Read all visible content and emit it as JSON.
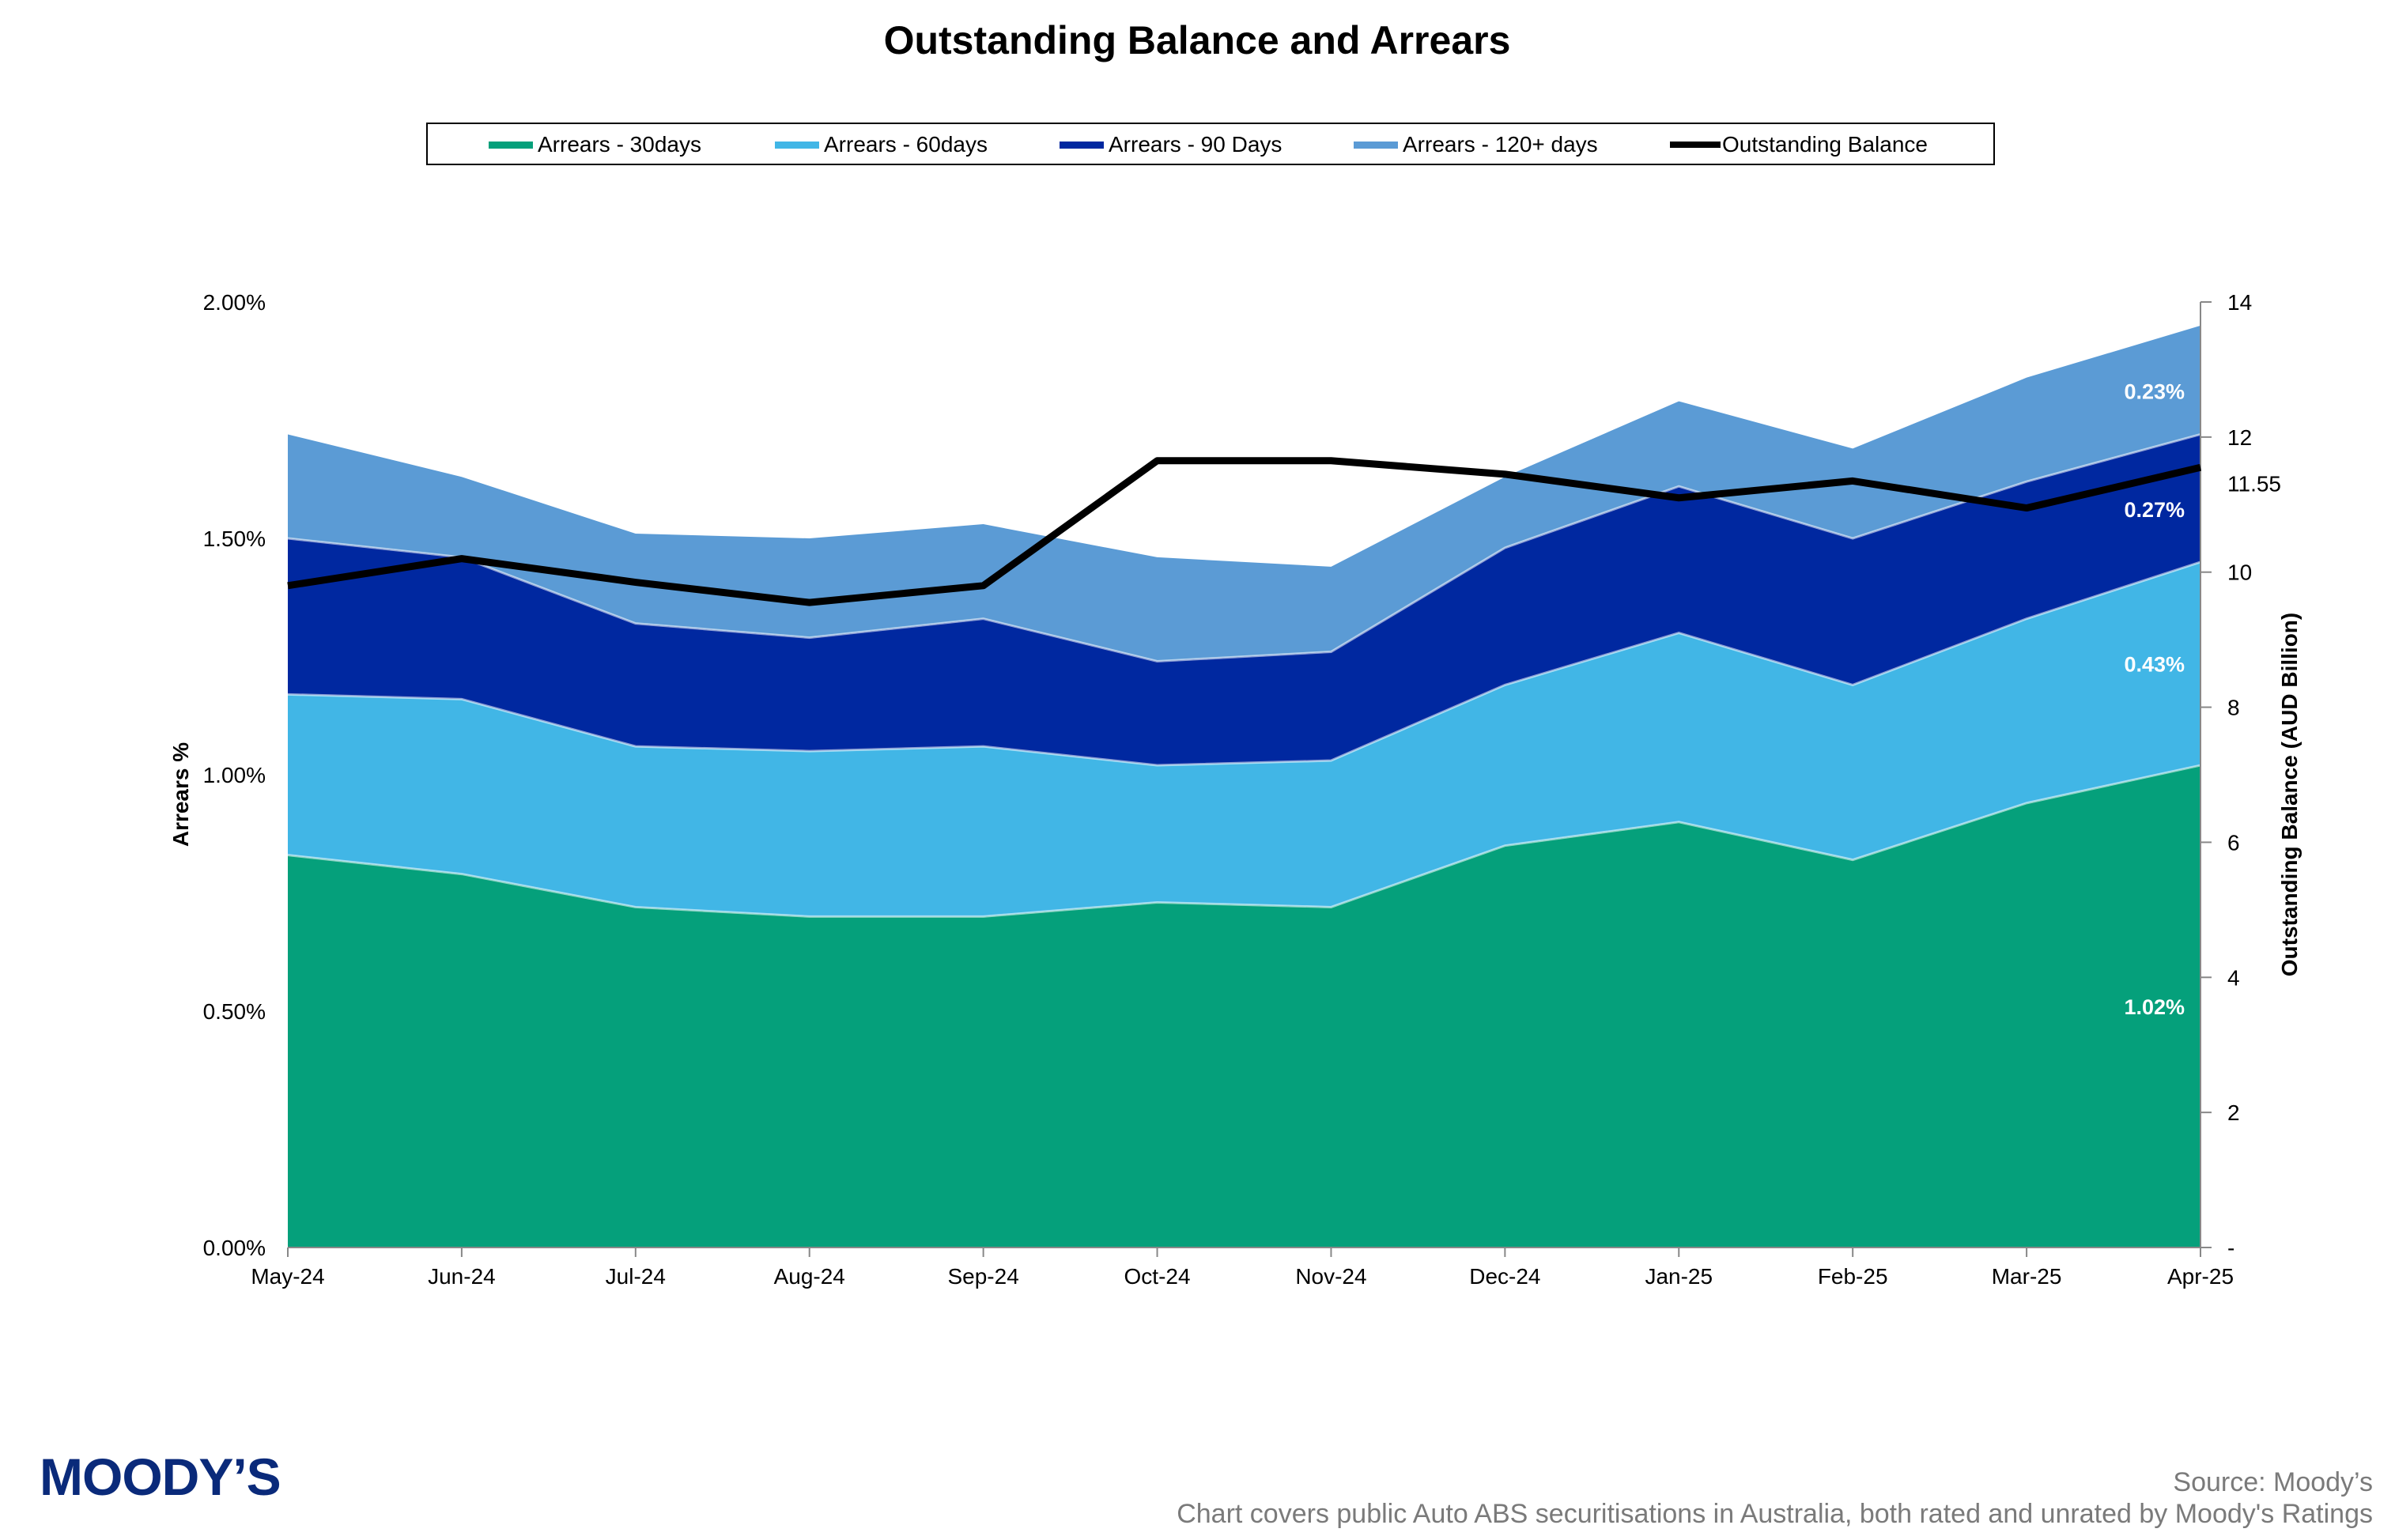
{
  "chart_data": {
    "type": "area",
    "title": "Outstanding Balance and Arrears",
    "categories": [
      "May-24",
      "Jun-24",
      "Jul-24",
      "Aug-24",
      "Sep-24",
      "Oct-24",
      "Nov-24",
      "Dec-24",
      "Jan-25",
      "Feb-25",
      "Mar-25",
      "Apr-25"
    ],
    "stacked": true,
    "ylabel": "Arrears %",
    "y2label": "Outstanding Balance (AUD Billion)",
    "ylim": [
      0,
      2.0
    ],
    "y2lim": [
      0,
      14
    ],
    "yticks": [
      "0.00%",
      "0.50%",
      "1.00%",
      "1.50%",
      "2.00%"
    ],
    "y2ticks": [
      "-",
      "2",
      "4",
      "6",
      "8",
      "10",
      "12",
      "14"
    ],
    "series": [
      {
        "name": "Arrears - 30days",
        "color": "#05a07b",
        "values": [
          0.83,
          0.79,
          0.72,
          0.7,
          0.7,
          0.73,
          0.72,
          0.85,
          0.9,
          0.82,
          0.94,
          1.02
        ]
      },
      {
        "name": "Arrears - 60days",
        "color": "#41b6e6",
        "values": [
          0.34,
          0.37,
          0.34,
          0.35,
          0.36,
          0.29,
          0.31,
          0.34,
          0.4,
          0.37,
          0.39,
          0.43
        ]
      },
      {
        "name": "Arrears - 90 Days",
        "color": "#0028a0",
        "values": [
          0.33,
          0.3,
          0.26,
          0.24,
          0.27,
          0.22,
          0.23,
          0.29,
          0.31,
          0.31,
          0.29,
          0.27
        ]
      },
      {
        "name": "Arrears - 120+ days",
        "color": "#5b9bd5",
        "values": [
          0.22,
          0.17,
          0.19,
          0.21,
          0.2,
          0.22,
          0.18,
          0.15,
          0.18,
          0.19,
          0.22,
          0.23
        ]
      }
    ],
    "line_series": {
      "name": "Outstanding Balance",
      "color": "#000000",
      "axis": "right",
      "values": [
        9.8,
        10.2,
        9.85,
        9.55,
        9.8,
        11.65,
        11.65,
        11.45,
        11.1,
        11.35,
        10.95,
        11.55
      ]
    },
    "data_labels": {
      "s30": "1.02%",
      "s60": "0.43%",
      "s90": "0.27%",
      "s120": "0.23%",
      "balance": "11.55"
    },
    "legend": {
      "placement": "top-center"
    }
  },
  "footer": {
    "logo": "MOODY’S",
    "source": "Source: Moody’s",
    "note": "Chart covers public Auto ABS securitisations in Australia, both rated and unrated by Moody's Ratings"
  }
}
